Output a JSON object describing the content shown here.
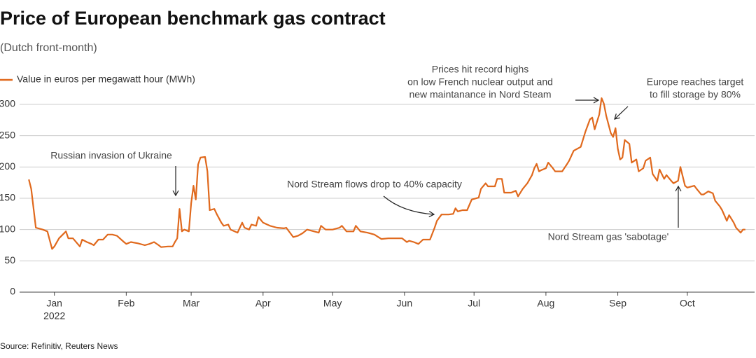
{
  "chart_data": {
    "type": "line",
    "title": "Price of European benchmark gas contract",
    "subtitle": "(Dutch front-month)",
    "source": "Source: Refinitiv, Reuters News",
    "x_year_label": "2022",
    "xlim": [
      -15,
      302
    ],
    "xticks": [
      {
        "value": 0,
        "label": "Jan"
      },
      {
        "value": 31,
        "label": "Feb"
      },
      {
        "value": 59,
        "label": "Mar"
      },
      {
        "value": 90,
        "label": "Apr"
      },
      {
        "value": 120,
        "label": "May"
      },
      {
        "value": 151,
        "label": "Jun"
      },
      {
        "value": 181,
        "label": "Jul"
      },
      {
        "value": 212,
        "label": "Aug"
      },
      {
        "value": 243,
        "label": "Sep"
      },
      {
        "value": 273,
        "label": "Oct"
      }
    ],
    "ylim": [
      0,
      300
    ],
    "yticks": [
      0,
      50,
      100,
      150,
      200,
      250,
      300
    ],
    "grid": true,
    "legend": "top-left",
    "x": [
      -11,
      -10,
      -8,
      -5,
      -3,
      -1,
      0,
      2,
      5,
      6,
      8,
      11,
      12,
      14,
      16,
      17,
      19,
      21,
      23,
      25,
      27,
      30,
      31,
      33,
      36,
      39,
      41,
      43,
      45,
      46,
      49,
      51,
      52,
      53,
      54,
      55,
      56,
      58,
      59,
      60,
      61,
      62,
      63,
      65,
      66,
      67,
      69,
      70,
      72,
      73,
      75,
      76,
      79,
      81,
      82,
      84,
      85,
      87,
      88,
      90,
      93,
      96,
      99,
      100,
      103,
      105,
      107,
      109,
      112,
      114,
      115,
      117,
      120,
      123,
      124,
      126,
      129,
      130,
      132,
      135,
      138,
      141,
      144,
      147,
      150,
      152,
      153,
      155,
      157,
      159,
      162,
      164,
      165,
      167,
      170,
      172,
      173,
      174,
      176,
      178,
      180,
      183,
      184,
      186,
      187,
      190,
      191,
      193,
      194,
      197,
      199,
      200,
      202,
      204,
      206,
      207,
      208,
      209,
      210,
      212,
      213,
      215,
      216,
      219,
      221,
      222,
      224,
      227,
      229,
      231,
      232,
      233,
      235,
      236,
      237,
      238,
      240,
      241,
      242,
      243,
      244,
      245,
      246,
      248,
      249,
      251,
      252,
      254,
      255,
      257,
      258,
      260,
      261,
      263,
      264,
      266,
      267,
      269,
      270,
      272,
      273,
      276,
      277,
      279,
      280,
      282,
      284,
      285,
      287,
      288,
      290,
      291,
      293,
      294,
      296,
      297,
      298
    ],
    "series": [
      {
        "name": "Value in euros per megawatt hour (MWh)",
        "color": "#e0691d",
        "values": [
          180,
          165,
          103,
          100,
          97,
          69,
          73,
          86,
          97,
          86,
          86,
          73,
          84,
          80,
          77,
          75,
          84,
          84,
          92,
          92,
          90,
          80,
          77,
          80,
          78,
          75,
          77,
          80,
          75,
          72,
          73,
          73,
          80,
          86,
          133,
          97,
          100,
          97,
          142,
          170,
          148,
          204,
          215,
          216,
          193,
          131,
          133,
          125,
          111,
          106,
          108,
          100,
          95,
          111,
          103,
          100,
          108,
          106,
          120,
          111,
          106,
          103,
          102,
          103,
          88,
          90,
          94,
          100,
          97,
          95,
          106,
          100,
          100,
          103,
          106,
          97,
          97,
          106,
          97,
          95,
          92,
          85,
          86,
          86,
          86,
          80,
          82,
          80,
          77,
          84,
          84,
          103,
          114,
          124,
          124,
          125,
          134,
          129,
          131,
          131,
          148,
          151,
          165,
          174,
          169,
          169,
          181,
          181,
          159,
          159,
          162,
          153,
          165,
          174,
          187,
          198,
          205,
          193,
          195,
          198,
          207,
          198,
          193,
          193,
          204,
          210,
          226,
          232,
          256,
          276,
          279,
          260,
          284,
          310,
          301,
          282,
          254,
          248,
          262,
          229,
          212,
          215,
          243,
          237,
          207,
          212,
          193,
          198,
          210,
          215,
          189,
          178,
          196,
          181,
          187,
          178,
          174,
          178,
          200,
          170,
          167,
          170,
          165,
          156,
          156,
          161,
          158,
          146,
          137,
          131,
          114,
          123,
          111,
          103,
          95,
          100,
          100
        ]
      }
    ],
    "annotations": [
      [
        "Russian invasion of Ukraine"
      ],
      [
        "Prices hit record highs",
        "on low French nuclear output and",
        "new maintanance in Nord Steam"
      ],
      [
        "Europe reaches target",
        "to fill storage by 80%"
      ],
      [
        "Nord Stream flows drop to 40% capacity"
      ],
      [
        "Nord Stream gas 'sabotage'"
      ]
    ]
  }
}
